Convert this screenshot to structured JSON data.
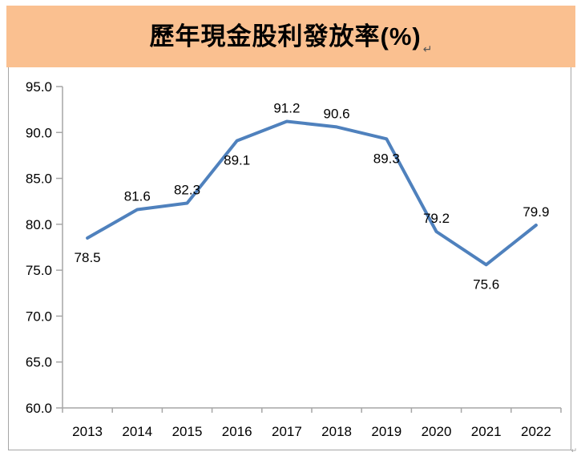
{
  "banner": {
    "title": "歷年現金股利發放率(%)",
    "return_mark": "↵"
  },
  "footer": {
    "corner_mark": "↵"
  },
  "colors": {
    "banner_bg": "#FAC090",
    "line": "#4F81BD",
    "axis": "#A6A6A6",
    "text": "#000000",
    "border": "#A6A6A6",
    "background": "#FFFFFF"
  },
  "chart_data": {
    "type": "line",
    "title": "歷年現金股利發放率(%)",
    "categories": [
      "2013",
      "2014",
      "2015",
      "2016",
      "2017",
      "2018",
      "2019",
      "2020",
      "2021",
      "2022"
    ],
    "series": [
      {
        "name": "現金股利發放率",
        "values": [
          78.5,
          81.6,
          82.3,
          89.1,
          91.2,
          90.6,
          89.3,
          79.2,
          75.6,
          79.9
        ]
      }
    ],
    "data_labels": [
      "78.5",
      "81.6",
      "82.3",
      "89.1",
      "91.2",
      "90.6",
      "89.3",
      "79.2",
      "75.6",
      "79.9"
    ],
    "label_positions": [
      "below",
      "above",
      "above",
      "below",
      "above",
      "above",
      "below",
      "above",
      "below",
      "above"
    ],
    "xlabel": "",
    "ylabel": "",
    "ylim": [
      60,
      95
    ],
    "ytick_values": [
      60,
      65,
      70,
      75,
      80,
      85,
      90,
      95
    ],
    "ytick_labels": [
      "60.0",
      "65.0",
      "70.0",
      "75.0",
      "80.0",
      "85.0",
      "90.0",
      "95.0"
    ],
    "grid": false,
    "legend": false,
    "line_width": 4
  }
}
